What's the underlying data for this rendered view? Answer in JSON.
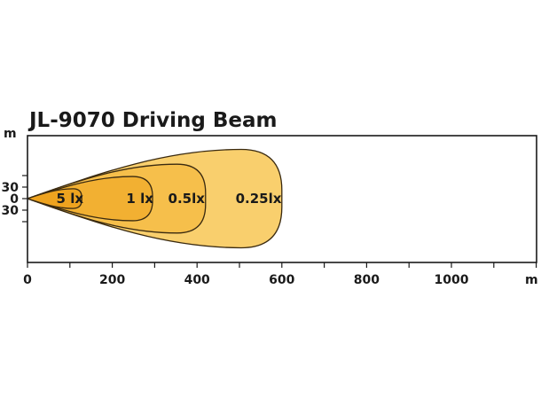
{
  "chart_data": {
    "type": "area",
    "title": "JL-9070   Driving Beam",
    "x_unit": "m",
    "y_unit": "m",
    "x_ticks": [
      0,
      200,
      400,
      600,
      800,
      1000
    ],
    "y_tick_labels": [
      "30",
      "0",
      "30"
    ],
    "y_tick_values": [
      30,
      0,
      -30
    ],
    "xlim": [
      0,
      1200
    ],
    "ylim": [
      -100,
      100
    ],
    "grid": false,
    "zones": [
      {
        "label": "0.25lx",
        "reach": 600,
        "half_width": 40,
        "label_x": 545,
        "color": "#f9cf6d"
      },
      {
        "label": "0.5lx",
        "reach": 420,
        "half_width": 28,
        "label_x": 375,
        "color": "#f6bf4b"
      },
      {
        "label": "1 lx",
        "reach": 295,
        "half_width": 18,
        "label_x": 265,
        "color": "#f2b032"
      },
      {
        "label": "5 lx",
        "reach": 128,
        "half_width": 8,
        "label_x": 100,
        "color": "#eea31f"
      }
    ]
  }
}
